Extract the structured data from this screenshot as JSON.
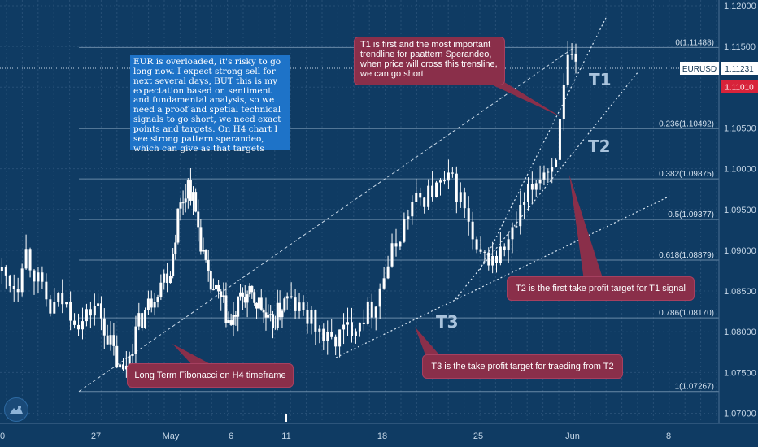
{
  "symbol": "EURUSD",
  "last_price_label": "1.11231",
  "red_price_label": "1.11010",
  "colors": {
    "background": "#0f3b63",
    "candle": "#ffffff",
    "grid": "#3a6187",
    "axis_text": "#c5d6e6",
    "note_blue": "#1e73c8",
    "note_red": "#8a2f4a",
    "price_tag_red": "#d8233a"
  },
  "chart_data": {
    "type": "candlestick",
    "instrument": "EURUSD",
    "timeframe": "H4",
    "ylim": [
      1.0694,
      1.1202
    ],
    "y_ticks": [
      "1.12000",
      "1.11500",
      "1.11000",
      "1.10500",
      "1.10000",
      "1.09500",
      "1.09000",
      "1.08500",
      "1.08000",
      "1.07500",
      "1.07000"
    ],
    "x_ticks": [
      "0",
      "27",
      "May",
      "6",
      "11",
      "18",
      "25",
      "Jun",
      "8"
    ],
    "close_path": [
      {
        "pos": 0.0,
        "close": 1.0875
      },
      {
        "pos": 0.18,
        "close": 1.0855
      },
      {
        "pos": 0.25,
        "close": 1.0905
      },
      {
        "pos": 0.52,
        "close": 1.0825
      },
      {
        "pos": 0.63,
        "close": 1.084
      },
      {
        "pos": 0.85,
        "close": 1.081
      },
      {
        "pos": 1.0,
        "close": 1.0835
      },
      {
        "pos": 1.35,
        "close": 1.0745
      },
      {
        "pos": 1.55,
        "close": 1.0805
      },
      {
        "pos": 1.85,
        "close": 1.086
      },
      {
        "pos": 2.0,
        "close": 1.0878
      },
      {
        "pos": 2.12,
        "close": 1.0945
      },
      {
        "pos": 2.3,
        "close": 1.0985
      },
      {
        "pos": 2.43,
        "close": 1.094
      },
      {
        "pos": 2.62,
        "close": 1.086
      },
      {
        "pos": 2.85,
        "close": 1.0835
      },
      {
        "pos": 3.0,
        "close": 1.0805
      },
      {
        "pos": 3.2,
        "close": 1.0845
      },
      {
        "pos": 3.4,
        "close": 1.084
      },
      {
        "pos": 3.55,
        "close": 1.083
      },
      {
        "pos": 3.7,
        "close": 1.0805
      },
      {
        "pos": 4.0,
        "close": 1.084
      },
      {
        "pos": 4.25,
        "close": 1.0815
      },
      {
        "pos": 4.45,
        "close": 1.0785
      },
      {
        "pos": 4.7,
        "close": 1.081
      },
      {
        "pos": 4.9,
        "close": 1.083
      },
      {
        "pos": 5.05,
        "close": 1.088
      },
      {
        "pos": 5.3,
        "close": 1.0955
      },
      {
        "pos": 5.55,
        "close": 1.0975
      },
      {
        "pos": 5.72,
        "close": 1.0985
      },
      {
        "pos": 5.85,
        "close": 1.0955
      },
      {
        "pos": 5.98,
        "close": 1.089
      },
      {
        "pos": 6.2,
        "close": 1.089
      },
      {
        "pos": 6.35,
        "close": 1.0915
      },
      {
        "pos": 6.5,
        "close": 1.096
      },
      {
        "pos": 6.65,
        "close": 1.0995
      },
      {
        "pos": 6.8,
        "close": 1.1005
      },
      {
        "pos": 6.87,
        "close": 1.1055
      },
      {
        "pos": 6.95,
        "close": 1.113
      },
      {
        "pos": 7.05,
        "close": 1.112
      }
    ],
    "fibonacci": [
      {
        "label": "0(1.11488)",
        "level": 1.11488
      },
      {
        "label": "0.236(1.10492)",
        "level": 1.10492
      },
      {
        "label": "0.382(1.09875)",
        "level": 1.09875
      },
      {
        "label": "0.5(1.09377)",
        "level": 1.09377
      },
      {
        "label": "0.618(1.08879)",
        "level": 1.08879
      },
      {
        "label": "0.786(1.08170)",
        "level": 1.0817
      },
      {
        "label": "1(1.07267)",
        "level": 1.07267
      }
    ]
  },
  "annotations": {
    "blue_note": "EUR is overloaded, it's risky to go long now. I expect strong sell for next several days, BUT this is my expectation based on sentiment and fundamental analysis, so we need a proof and spetial technical signals to go short, we need exact points and targets. On H4 chart I see strong pattern sperandeo, which can give as that targets",
    "t1_note": "T1 is first and the most important trendline for paattern Sperandeo, when price will cross this trensline, we can go short",
    "t2_note": "T2 is the first take profit target for T1 signal",
    "t3_note": "T3 is the take profit target for traeding from T2",
    "fib_note": "Long Term Fibonacci on H4 timeframe",
    "label_t1": "T1",
    "label_t2": "T2",
    "label_t3": "T3"
  }
}
